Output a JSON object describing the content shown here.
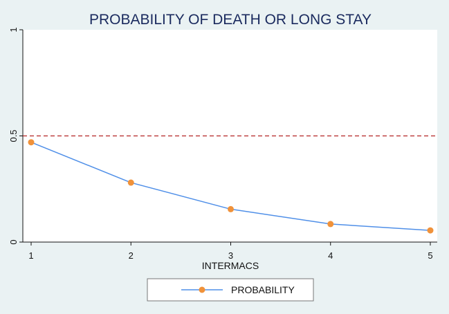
{
  "chart_data": {
    "type": "line",
    "title": "PROBABILITY OF DEATH OR LONG STAY",
    "xlabel": "INTERMACS",
    "ylabel": "",
    "x": [
      1,
      2,
      3,
      4,
      5
    ],
    "xlim": [
      1,
      5
    ],
    "ylim": [
      0,
      1
    ],
    "yticks": [
      0,
      0.5,
      1
    ],
    "ytick_labels": [
      "0",
      "0.5",
      "1"
    ],
    "xticks": [
      1,
      2,
      3,
      4,
      5
    ],
    "xtick_labels": [
      "1",
      "2",
      "3",
      "4",
      "5"
    ],
    "reference_line": {
      "y": 0.5,
      "color": "#b22222",
      "style": "dashed"
    },
    "series": [
      {
        "name": "PROBABILITY",
        "values": [
          0.47,
          0.28,
          0.155,
          0.085,
          0.055
        ],
        "line_color": "#4f8fe8",
        "marker_color": "#f0923a"
      }
    ],
    "grid": false,
    "legend_position": "bottom-center",
    "colors": {
      "background": "#eaf2f3",
      "plot_background": "#ffffff",
      "title": "#1a2a5e"
    }
  }
}
